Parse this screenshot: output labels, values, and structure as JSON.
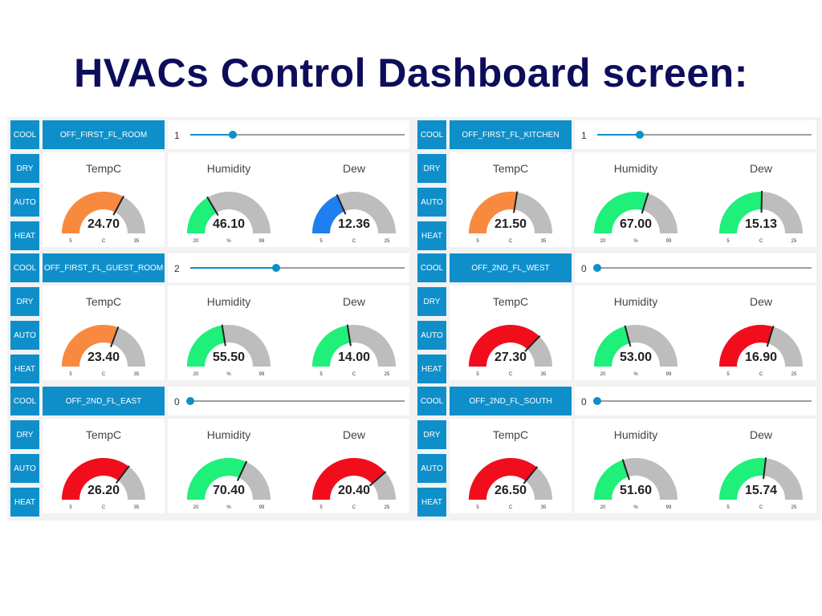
{
  "page_title": "HVACs Control Dashboard screen:",
  "colors": {
    "button": "#0f8fca",
    "track": "#bdbdbd",
    "low_blue": "#1f7ff0",
    "green": "#1ef07a",
    "orange": "#f88a40",
    "red": "#f20d1d",
    "needle": "#222222"
  },
  "mode_buttons": [
    "COOL",
    "DRY",
    "AUTO",
    "HEAT"
  ],
  "panels": [
    {
      "room": "OFF_FIRST_FL_ROOM",
      "slider": {
        "value": "1",
        "fraction": 0.2
      },
      "gauges": [
        {
          "title": "TempC",
          "value": "24.70",
          "min": "5",
          "max": "35",
          "unit": "C",
          "fraction": 0.657,
          "color": "orange"
        },
        {
          "title": "Humidity",
          "value": "46.10",
          "min": "20",
          "max": "99",
          "unit": "%",
          "fraction": 0.33,
          "color": "green"
        },
        {
          "title": "Dew",
          "value": "12.36",
          "min": "5",
          "max": "25",
          "unit": "C",
          "fraction": 0.368,
          "color": "low_blue"
        }
      ]
    },
    {
      "room": "OFF_FIRST_FL_KITCHEN",
      "slider": {
        "value": "1",
        "fraction": 0.2
      },
      "gauges": [
        {
          "title": "TempC",
          "value": "21.50",
          "min": "5",
          "max": "35",
          "unit": "C",
          "fraction": 0.55,
          "color": "orange"
        },
        {
          "title": "Humidity",
          "value": "67.00",
          "min": "20",
          "max": "99",
          "unit": "%",
          "fraction": 0.595,
          "color": "green"
        },
        {
          "title": "Dew",
          "value": "15.13",
          "min": "5",
          "max": "25",
          "unit": "C",
          "fraction": 0.5065,
          "color": "green"
        }
      ]
    },
    {
      "room": "OFF_FIRST_FL_GUEST_ROOM",
      "slider": {
        "value": "2",
        "fraction": 0.4
      },
      "gauges": [
        {
          "title": "TempC",
          "value": "23.40",
          "min": "5",
          "max": "35",
          "unit": "C",
          "fraction": 0.613,
          "color": "orange"
        },
        {
          "title": "Humidity",
          "value": "55.50",
          "min": "20",
          "max": "99",
          "unit": "%",
          "fraction": 0.449,
          "color": "green"
        },
        {
          "title": "Dew",
          "value": "14.00",
          "min": "5",
          "max": "25",
          "unit": "C",
          "fraction": 0.45,
          "color": "green"
        }
      ]
    },
    {
      "room": "OFF_2ND_FL_WEST",
      "slider": {
        "value": "0",
        "fraction": 0.0
      },
      "gauges": [
        {
          "title": "TempC",
          "value": "27.30",
          "min": "5",
          "max": "35",
          "unit": "C",
          "fraction": 0.743,
          "color": "red"
        },
        {
          "title": "Humidity",
          "value": "53.00",
          "min": "20",
          "max": "99",
          "unit": "%",
          "fraction": 0.418,
          "color": "green"
        },
        {
          "title": "Dew",
          "value": "16.90",
          "min": "5",
          "max": "25",
          "unit": "C",
          "fraction": 0.595,
          "color": "red"
        }
      ]
    },
    {
      "room": "OFF_2ND_FL_EAST",
      "slider": {
        "value": "0",
        "fraction": 0.0
      },
      "gauges": [
        {
          "title": "TempC",
          "value": "26.20",
          "min": "5",
          "max": "35",
          "unit": "C",
          "fraction": 0.707,
          "color": "red"
        },
        {
          "title": "Humidity",
          "value": "70.40",
          "min": "20",
          "max": "99",
          "unit": "%",
          "fraction": 0.638,
          "color": "green"
        },
        {
          "title": "Dew",
          "value": "20.40",
          "min": "5",
          "max": "25",
          "unit": "C",
          "fraction": 0.77,
          "color": "red"
        }
      ]
    },
    {
      "room": "OFF_2ND_FL_SOUTH",
      "slider": {
        "value": "0",
        "fraction": 0.0
      },
      "gauges": [
        {
          "title": "TempC",
          "value": "26.50",
          "min": "5",
          "max": "35",
          "unit": "C",
          "fraction": 0.717,
          "color": "red"
        },
        {
          "title": "Humidity",
          "value": "51.60",
          "min": "20",
          "max": "99",
          "unit": "%",
          "fraction": 0.4,
          "color": "green"
        },
        {
          "title": "Dew",
          "value": "15.74",
          "min": "5",
          "max": "25",
          "unit": "C",
          "fraction": 0.537,
          "color": "green"
        }
      ]
    }
  ]
}
